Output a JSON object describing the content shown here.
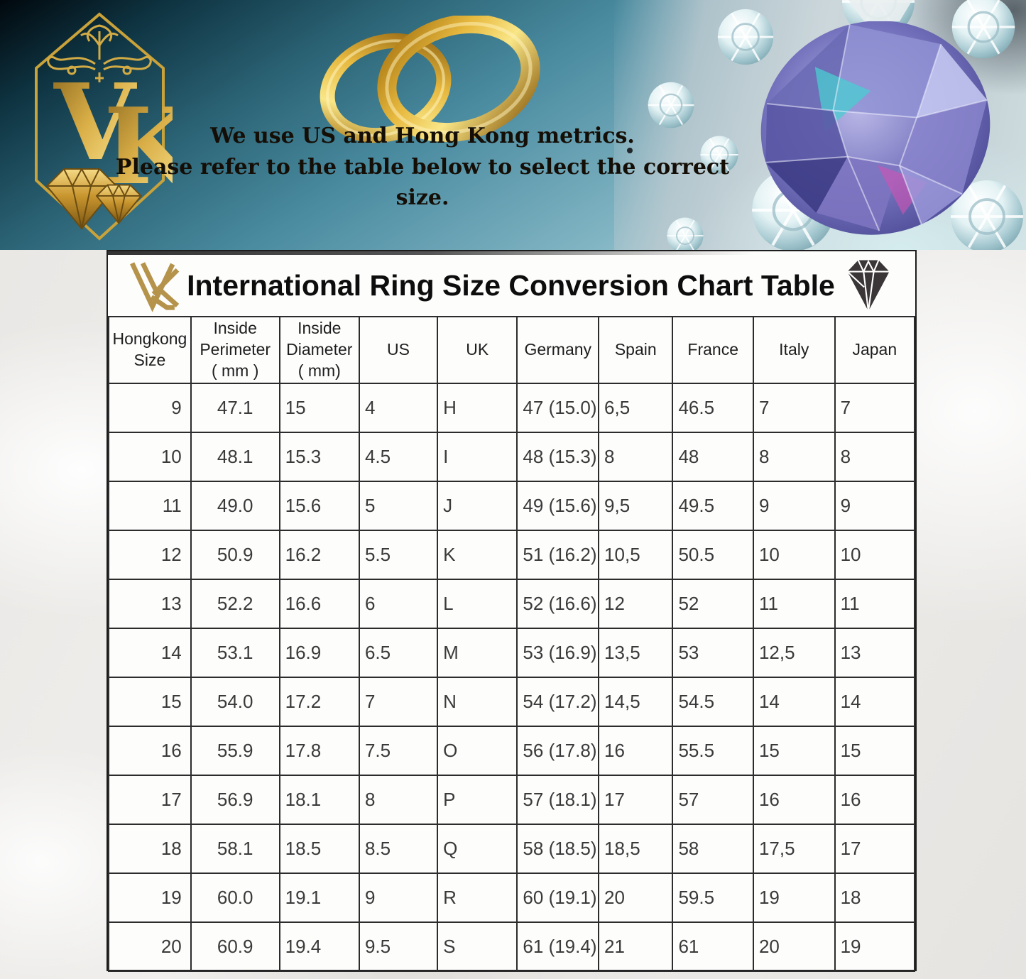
{
  "banner": {
    "logo": {
      "letter_v": "V",
      "letter_k": "K"
    },
    "message_line1": "We use US and Hong Kong metrics.",
    "message_line2": "Please refer to the table below to select the correct size."
  },
  "card": {
    "title": "International Ring Size Conversion Chart Table"
  },
  "chart_data": {
    "type": "table",
    "title": "International Ring Size Conversion Chart Table",
    "columns": [
      "Hongkong Size",
      "Inside Perimeter ( mm )",
      "Inside Diameter ( mm)",
      "US",
      "UK",
      "Germany",
      "Spain",
      "France",
      "Italy",
      "Japan"
    ],
    "column_display": [
      "Hongkong\nSize",
      "Inside\nPerimeter\n( mm )",
      "Inside\nDiameter\n( mm)",
      "US",
      "UK",
      "Germany",
      "Spain",
      "France",
      "Italy",
      "Japan"
    ],
    "column_widths_pct": [
      10.2,
      11.0,
      9.9,
      9.7,
      9.9,
      10.1,
      9.2,
      10.0,
      10.1,
      9.9
    ],
    "rows": [
      [
        "9",
        "47.1",
        "15",
        "4",
        "H",
        "47 (15.0)",
        "6,5",
        "46.5",
        "7",
        "7"
      ],
      [
        "10",
        "48.1",
        "15.3",
        "4.5",
        "I",
        "48 (15.3)",
        "8",
        "48",
        "8",
        "8"
      ],
      [
        "11",
        "49.0",
        "15.6",
        "5",
        "J",
        "49 (15.6)",
        "9,5",
        "49.5",
        "9",
        "9"
      ],
      [
        "12",
        "50.9",
        "16.2",
        "5.5",
        "K",
        "51 (16.2)",
        "10,5",
        "50.5",
        "10",
        "10"
      ],
      [
        "13",
        "52.2",
        "16.6",
        "6",
        "L",
        "52 (16.6)",
        "12",
        "52",
        "11",
        "11"
      ],
      [
        "14",
        "53.1",
        "16.9",
        "6.5",
        "M",
        "53 (16.9)",
        "13,5",
        "53",
        "12,5",
        "13"
      ],
      [
        "15",
        "54.0",
        "17.2",
        "7",
        "N",
        "54 (17.2)",
        "14,5",
        "54.5",
        "14",
        "14"
      ],
      [
        "16",
        "55.9",
        "17.8",
        "7.5",
        "O",
        "56 (17.8)",
        "16",
        "55.5",
        "15",
        "15"
      ],
      [
        "17",
        "56.9",
        "18.1",
        "8",
        "P",
        "57 (18.1)",
        "17",
        "57",
        "16",
        "16"
      ],
      [
        "18",
        "58.1",
        "18.5",
        "8.5",
        "Q",
        "58 (18.5)",
        "18,5",
        "58",
        "17,5",
        "17"
      ],
      [
        "19",
        "60.0",
        "19.1",
        "9",
        "R",
        "60 (19.1)",
        "20",
        "59.5",
        "19",
        "18"
      ],
      [
        "20",
        "60.9",
        "19.4",
        "9.5",
        "S",
        "61 (19.4)",
        "21",
        "61",
        "20",
        "19"
      ]
    ]
  },
  "colors": {
    "gold": "#c39a3d",
    "banner_teal": "#4a8ba0",
    "title_text": "#0d0d0d",
    "cell_text": "#3a3a3a",
    "grid_line": "#2c2c2c",
    "diamond_icon": "#3a3537"
  }
}
